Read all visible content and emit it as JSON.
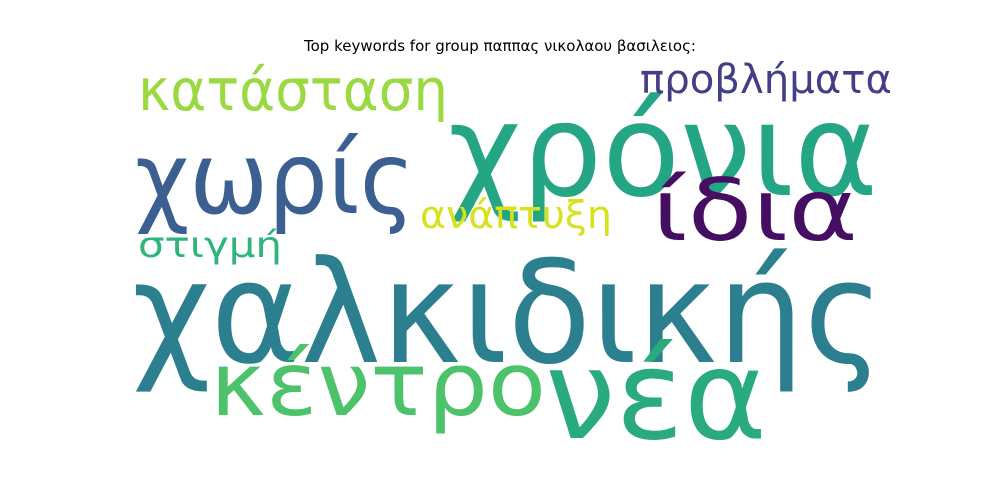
{
  "title": "Top keywords for group παππας νικολαου βασιλειος:",
  "words": [
    {
      "text": "χαλκιδικής",
      "color": "#2c7f8e"
    },
    {
      "text": "χρόνια",
      "color": "#24a584"
    },
    {
      "text": "νέα",
      "color": "#2aab7e"
    },
    {
      "text": "κέντρο",
      "color": "#4cc26a"
    },
    {
      "text": "χωρίς",
      "color": "#3b5f91"
    },
    {
      "text": "ίδια",
      "color": "#460e63"
    },
    {
      "text": "κατάσταση",
      "color": "#9bd940"
    },
    {
      "text": "προβλήματα",
      "color": "#433e85"
    },
    {
      "text": "ανάπτυξη",
      "color": "#d6e21c"
    },
    {
      "text": "στιγμή",
      "color": "#2fb47c"
    }
  ]
}
